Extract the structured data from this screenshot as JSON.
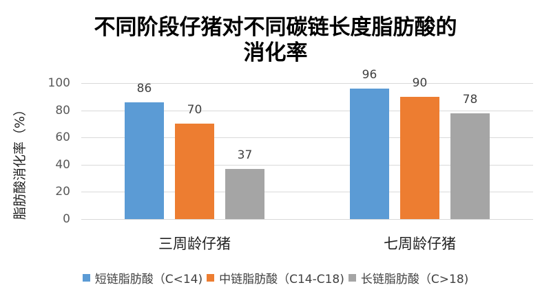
{
  "chart_data": {
    "type": "bar",
    "title": "不同阶段仔猪对不同碳链长度脂肪酸的消化率",
    "title_lines": [
      "不同阶段仔猪对不同碳链长度脂肪酸的",
      "消化率"
    ],
    "xlabel": "",
    "ylabel": "脂肪酸消化率（%）",
    "ylim": [
      0,
      100
    ],
    "yticks": [
      "0",
      "20",
      "40",
      "60",
      "80",
      "100"
    ],
    "grid": true,
    "legend_position": "bottom",
    "categories": [
      "三周龄仔猪",
      "七周龄仔猪"
    ],
    "series": [
      {
        "name": "短链脂肪酸（C<14)",
        "color": "#5b9bd5",
        "values": [
          86,
          96
        ]
      },
      {
        "name": "中链脂肪酸（C14-C18)",
        "color": "#ed7d31",
        "values": [
          70,
          90
        ]
      },
      {
        "name": "长链脂肪酸（C>18)",
        "color": "#a5a5a5",
        "values": [
          37,
          78
        ]
      }
    ]
  }
}
